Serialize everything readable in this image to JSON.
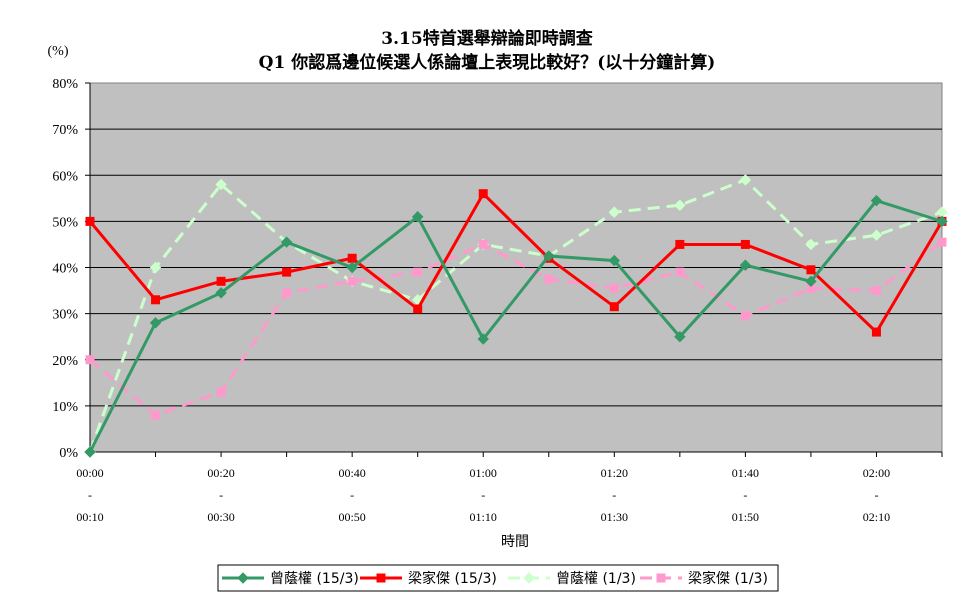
{
  "chart_data": {
    "type": "line",
    "title": "3.15特首選舉辯論即時調查",
    "subtitle": "Q1 你認爲邊位候選人係論壇上表現比較好？(以十分鐘計算)",
    "ylabel": "(%)",
    "xlabel": "時間",
    "ylim": [
      0,
      80
    ],
    "yticks": [
      "0%",
      "10%",
      "20%",
      "30%",
      "40%",
      "50%",
      "60%",
      "70%",
      "80%"
    ],
    "categories": [
      "00:00-00:10",
      "00:10-00:20",
      "00:20-00:30",
      "00:30-00:40",
      "00:40-00:50",
      "00:50-01:00",
      "01:00-01:10",
      "01:10-01:20",
      "01:20-01:30",
      "01:30-01:40",
      "01:40-01:50",
      "01:50-02:00",
      "02:00-02:10",
      "02:10-02:20"
    ],
    "xtick_labels": [
      {
        "index": 0,
        "top": "00:00",
        "mid": "-",
        "bottom": "00:10"
      },
      {
        "index": 2,
        "top": "00:20",
        "mid": "-",
        "bottom": "00:30"
      },
      {
        "index": 4,
        "top": "00:40",
        "mid": "-",
        "bottom": "00:50"
      },
      {
        "index": 6,
        "top": "01:00",
        "mid": "-",
        "bottom": "01:10"
      },
      {
        "index": 8,
        "top": "01:20",
        "mid": "-",
        "bottom": "01:30"
      },
      {
        "index": 10,
        "top": "01:40",
        "mid": "-",
        "bottom": "01:50"
      },
      {
        "index": 12,
        "top": "02:00",
        "mid": "-",
        "bottom": "02:10"
      }
    ],
    "grid": true,
    "legend": "bottom",
    "plot_background": "#c0c0c0",
    "series": [
      {
        "name": "曾蔭權 (15/3)",
        "color": "#339966",
        "dash": "solid",
        "marker": "diamond",
        "values": [
          0,
          28,
          34.5,
          45.5,
          40,
          51,
          24.5,
          42.5,
          41.5,
          25,
          40.5,
          37,
          54.5,
          50
        ]
      },
      {
        "name": "梁家傑 (15/3)",
        "color": "#ff0000",
        "dash": "solid",
        "marker": "square",
        "values": [
          50,
          33,
          37,
          39,
          42,
          31,
          56,
          42,
          31.5,
          45,
          45,
          39.5,
          26,
          50
        ]
      },
      {
        "name": "曾蔭權 (1/3)",
        "color": "#ccffcc",
        "dash": "dashed",
        "marker": "diamond",
        "values": [
          0,
          40,
          58,
          45.5,
          37,
          33,
          45,
          42.5,
          52,
          53.5,
          59,
          45,
          47,
          52
        ]
      },
      {
        "name": "梁家傑 (1/3)",
        "color": "#ff99cc",
        "dash": "dashed",
        "marker": "square",
        "values": [
          20,
          8,
          13,
          34.5,
          37,
          39,
          45,
          37.5,
          35.5,
          39,
          29.5,
          35.5,
          35,
          45.5
        ]
      }
    ]
  }
}
